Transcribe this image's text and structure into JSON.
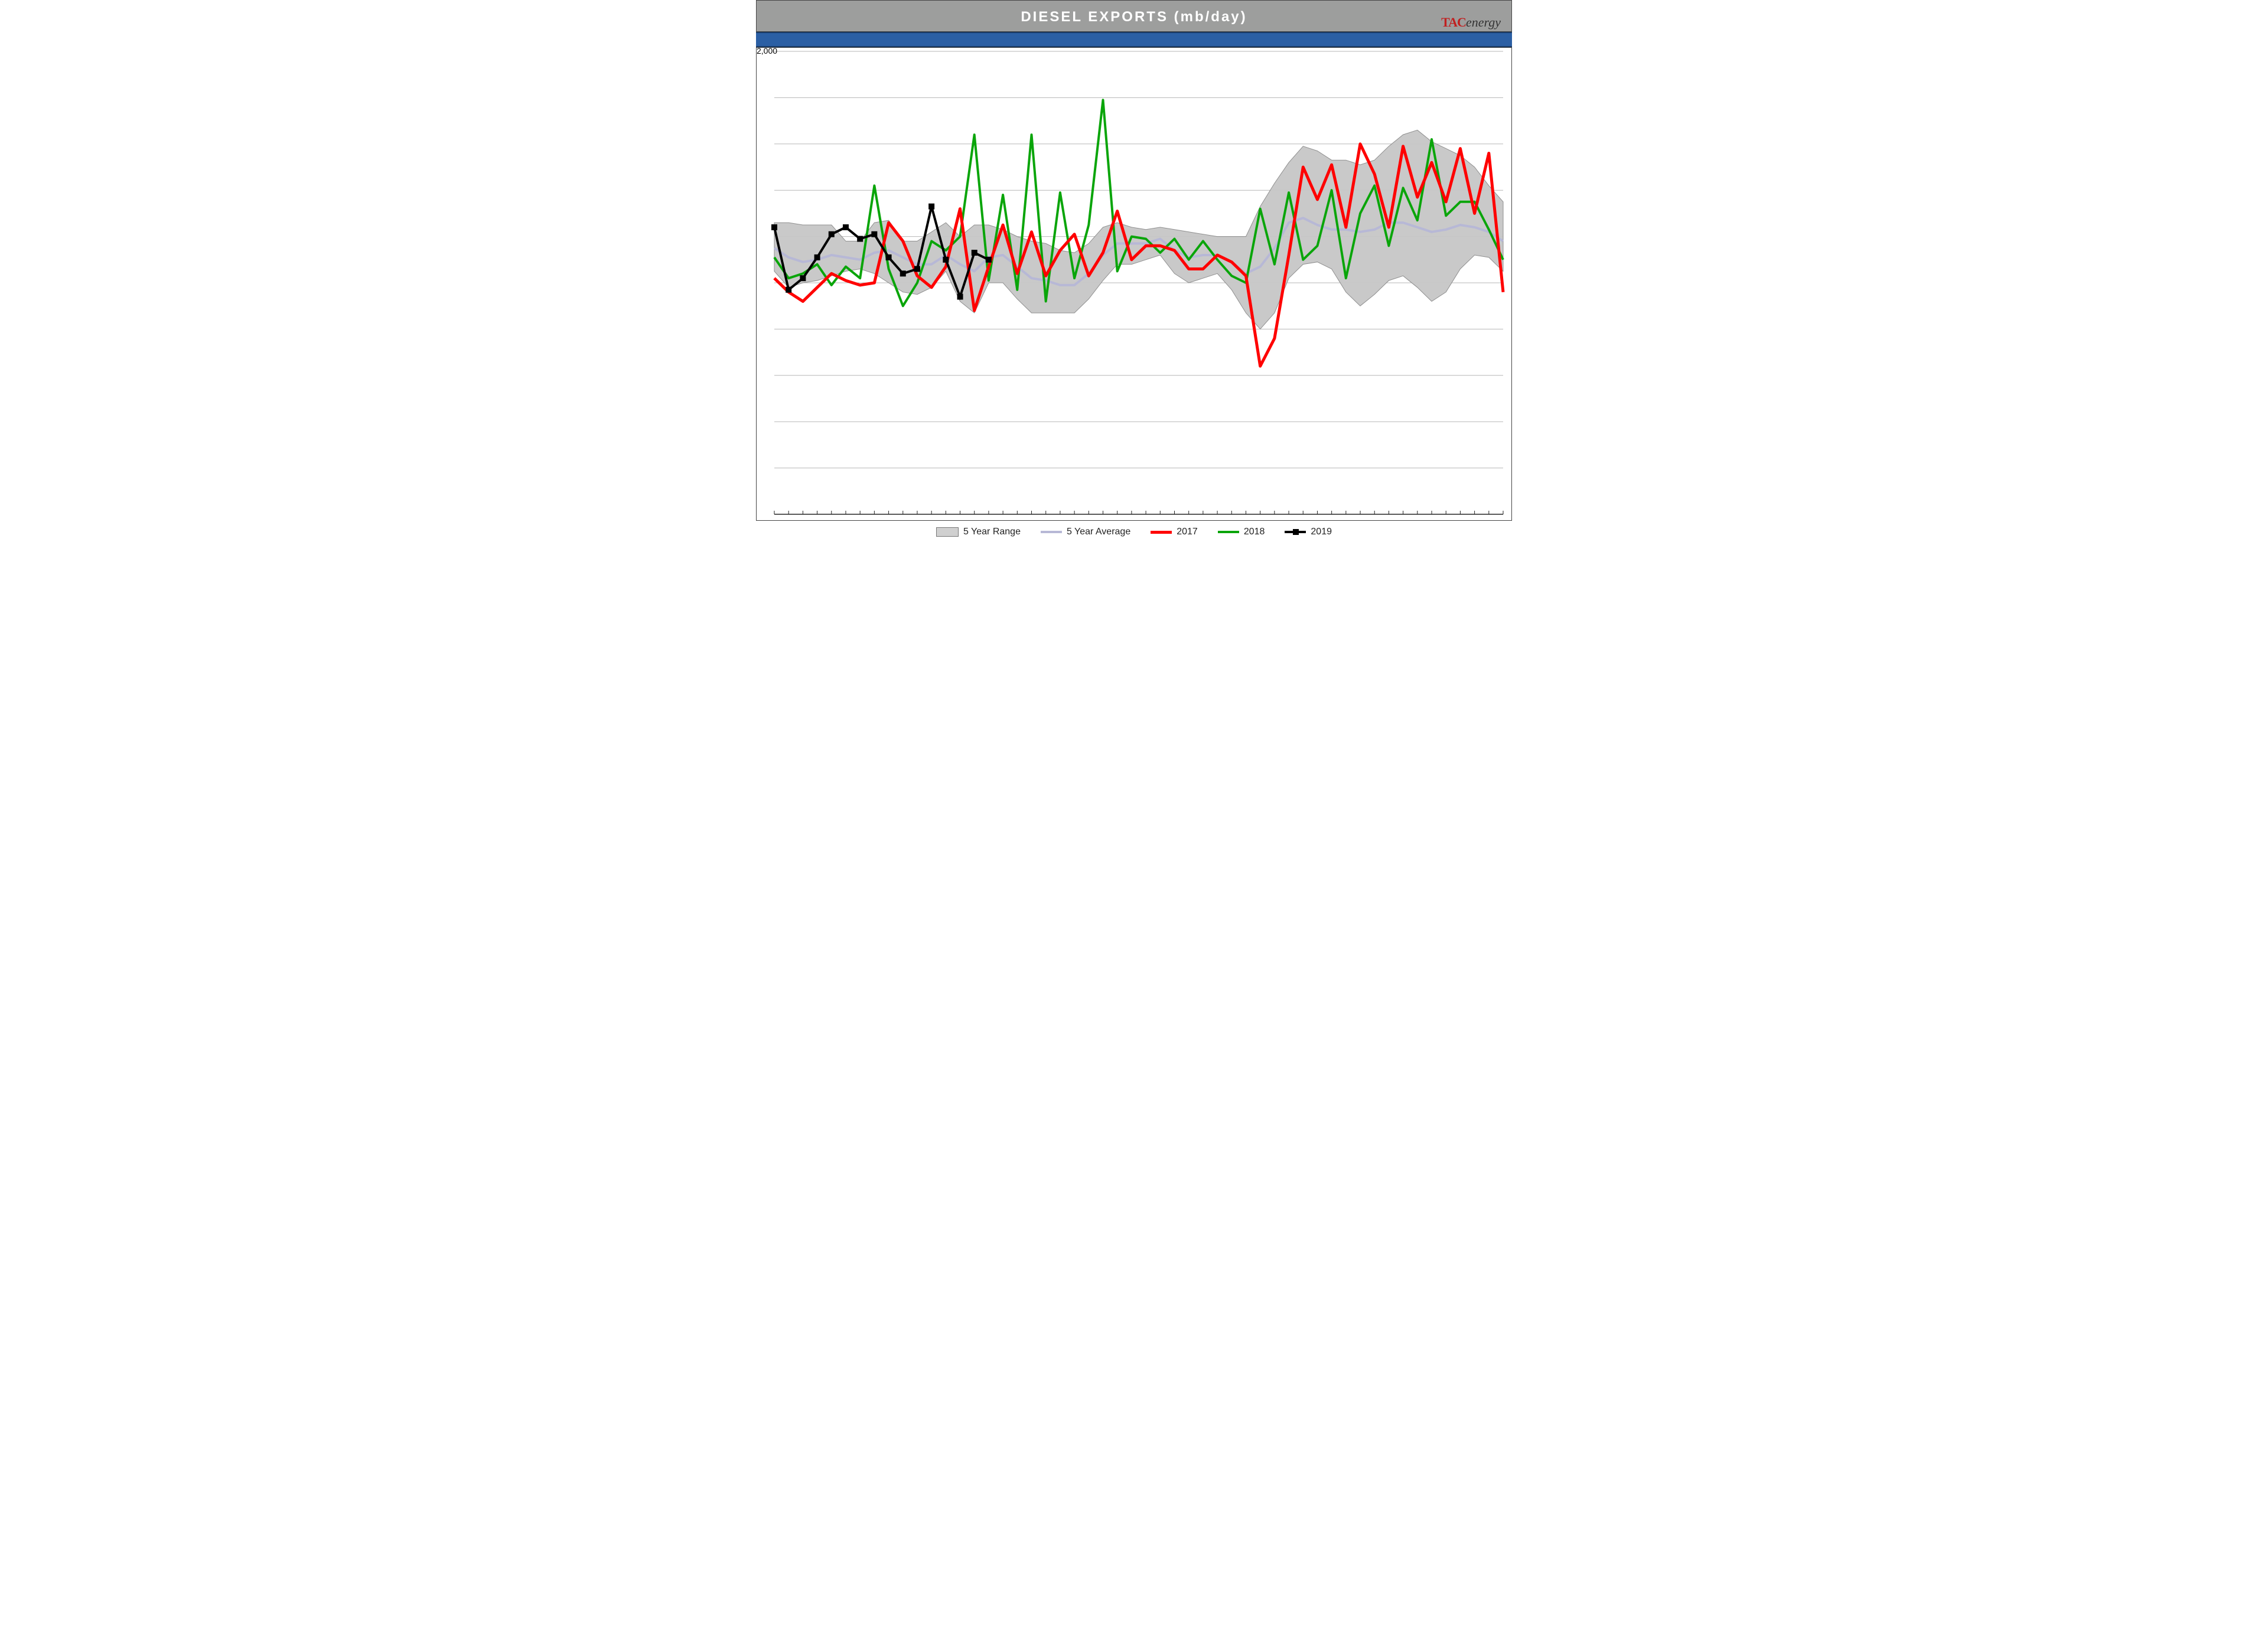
{
  "title": "DIESEL EXPORTS (mb/day)",
  "brand_tac": "TAC",
  "brand_en": "energy",
  "chart": {
    "type": "line-with-band",
    "background_color": "#ffffff",
    "grid_color": "#888888",
    "ylim": [
      0,
      2000
    ],
    "ytick_step": 200,
    "ylabel_top": "2,000",
    "n_weeks": 52,
    "band": {
      "label": "5 Year Range",
      "fill": "#c7c7c7",
      "stroke": "#8a8a8a",
      "upper": [
        1260,
        1260,
        1250,
        1250,
        1250,
        1180,
        1180,
        1260,
        1270,
        1180,
        1180,
        1220,
        1260,
        1200,
        1250,
        1250,
        1230,
        1200,
        1180,
        1170,
        1140,
        1130,
        1170,
        1240,
        1260,
        1240,
        1230,
        1240,
        1230,
        1220,
        1210,
        1200,
        1200,
        1200,
        1330,
        1430,
        1520,
        1590,
        1570,
        1530,
        1530,
        1510,
        1530,
        1590,
        1640,
        1660,
        1610,
        1580,
        1550,
        1500,
        1420,
        1350
      ],
      "lower": [
        1050,
        980,
        1000,
        1010,
        1030,
        1050,
        1060,
        1040,
        1000,
        960,
        950,
        980,
        1050,
        920,
        870,
        1000,
        1000,
        930,
        870,
        870,
        870,
        870,
        930,
        1010,
        1080,
        1080,
        1100,
        1120,
        1040,
        1000,
        1020,
        1040,
        970,
        870,
        800,
        870,
        1020,
        1080,
        1090,
        1060,
        960,
        900,
        950,
        1010,
        1030,
        980,
        920,
        960,
        1060,
        1120,
        1110,
        1050
      ]
    },
    "avg": {
      "label": "5 Year Average",
      "color": "#b7b8d6",
      "width": 4,
      "values": [
        1150,
        1110,
        1090,
        1100,
        1120,
        1110,
        1100,
        1130,
        1140,
        1110,
        1080,
        1080,
        1120,
        1080,
        1050,
        1110,
        1120,
        1070,
        1020,
        1010,
        990,
        990,
        1040,
        1120,
        1170,
        1170,
        1170,
        1190,
        1140,
        1110,
        1120,
        1120,
        1090,
        1040,
        1070,
        1150,
        1260,
        1280,
        1250,
        1230,
        1230,
        1220,
        1230,
        1260,
        1260,
        1240,
        1220,
        1230,
        1250,
        1240,
        1220,
        1180
      ]
    },
    "s2017": {
      "label": "2017",
      "color": "#ff0000",
      "width": 5,
      "values": [
        1020,
        960,
        920,
        980,
        1040,
        1010,
        990,
        1000,
        1260,
        1180,
        1030,
        980,
        1070,
        1320,
        880,
        1070,
        1250,
        1040,
        1220,
        1030,
        1140,
        1210,
        1030,
        1130,
        1310,
        1100,
        1160,
        1160,
        1140,
        1060,
        1060,
        1120,
        1090,
        1030,
        640,
        760,
        1120,
        1500,
        1360,
        1510,
        1240,
        1600,
        1470,
        1240,
        1590,
        1370,
        1520,
        1350,
        1580,
        1300,
        1560,
        960
      ]
    },
    "s2018": {
      "label": "2018",
      "color": "#0aa50a",
      "width": 4,
      "values": [
        1110,
        1020,
        1040,
        1080,
        990,
        1070,
        1020,
        1420,
        1060,
        900,
        1000,
        1180,
        1140,
        1200,
        1640,
        1010,
        1380,
        970,
        1640,
        920,
        1390,
        1020,
        1250,
        1790,
        1050,
        1200,
        1190,
        1130,
        1190,
        1100,
        1180,
        1100,
        1030,
        1000,
        1320,
        1080,
        1390,
        1100,
        1160,
        1400,
        1020,
        1300,
        1420,
        1160,
        1410,
        1270,
        1620,
        1290,
        1350,
        1350,
        1230,
        1100
      ]
    },
    "s2019": {
      "label": "2019",
      "color": "#000000",
      "width": 4,
      "marker": "square",
      "values": [
        1240,
        970,
        1020,
        1110,
        1210,
        1240,
        1190,
        1210,
        1110,
        1040,
        1060,
        1330,
        1100,
        940,
        1130,
        1100
      ]
    },
    "legend": [
      "5 Year Range",
      "5 Year Average",
      "2017",
      "2018",
      "2019"
    ]
  }
}
